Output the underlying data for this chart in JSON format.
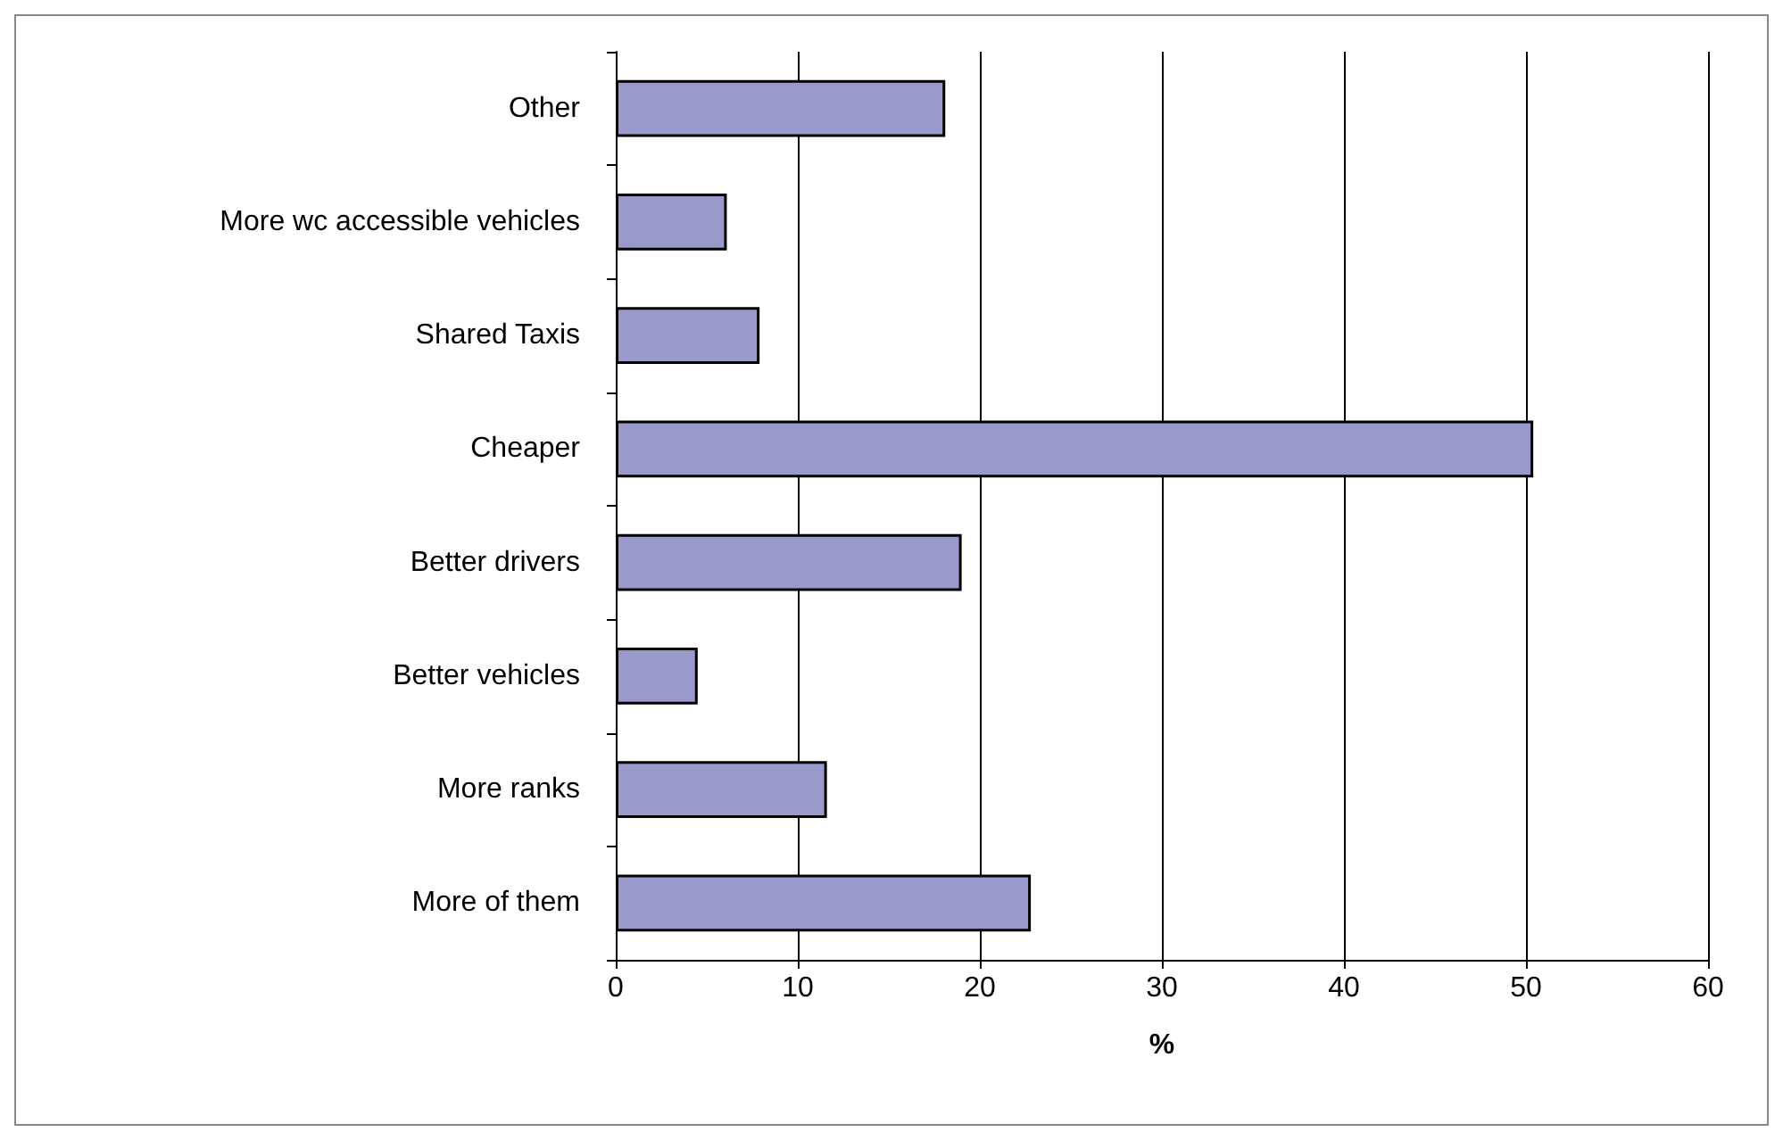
{
  "chart_data": {
    "type": "bar",
    "orientation": "horizontal",
    "xlabel": "%",
    "categories": [
      "Other",
      "More wc accessible vehicles",
      "Shared Taxis",
      "Cheaper",
      "Better drivers",
      "Better vehicles",
      "More ranks",
      "More of them"
    ],
    "values": [
      18.1,
      6.1,
      7.9,
      50.4,
      19.0,
      4.5,
      11.6,
      22.8
    ],
    "color": "#9999cc",
    "xlim": [
      0,
      60
    ],
    "xticks": [
      0,
      10,
      20,
      30,
      40,
      50,
      60
    ],
    "grid": "x"
  }
}
